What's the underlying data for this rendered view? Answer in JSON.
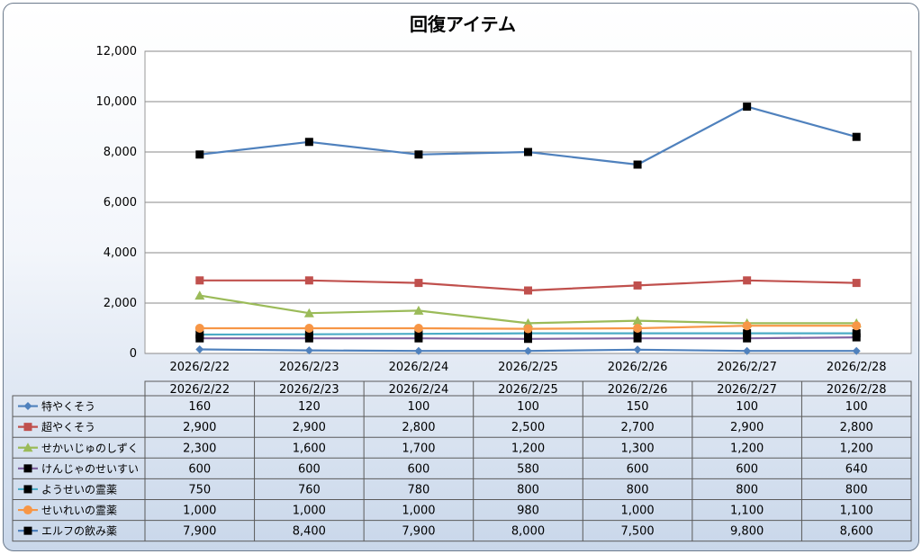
{
  "chart_data": {
    "type": "line",
    "title": "回復アイテム",
    "xlabel": "",
    "ylabel": "",
    "ylim": [
      0,
      12000
    ],
    "yticks": [
      "0",
      "2,000",
      "4,000",
      "6,000",
      "8,000",
      "10,000",
      "12,000"
    ],
    "categories": [
      "2026/2/22",
      "2026/2/23",
      "2026/2/24",
      "2026/2/25",
      "2026/2/26",
      "2026/2/27",
      "2026/2/28"
    ],
    "grid": true,
    "legend": "data-table",
    "series": [
      {
        "name": "特やくそう",
        "color": "#4f81bd",
        "marker": "diamond",
        "values": [
          160,
          120,
          100,
          100,
          150,
          100,
          100
        ],
        "labels": [
          "160",
          "120",
          "100",
          "100",
          "150",
          "100",
          "100"
        ]
      },
      {
        "name": "超やくそう",
        "color": "#c0504d",
        "marker": "square",
        "values": [
          2900,
          2900,
          2800,
          2500,
          2700,
          2900,
          2800
        ],
        "labels": [
          "2,900",
          "2,900",
          "2,800",
          "2,500",
          "2,700",
          "2,900",
          "2,800"
        ]
      },
      {
        "name": "せかいじゅのしずく",
        "color": "#9bbb59",
        "marker": "triangle",
        "values": [
          2300,
          1600,
          1700,
          1200,
          1300,
          1200,
          1200
        ],
        "labels": [
          "2,300",
          "1,600",
          "1,700",
          "1,200",
          "1,300",
          "1,200",
          "1,200"
        ]
      },
      {
        "name": "けんじゃのせいすい",
        "color": "#8064a2",
        "marker": "black-square",
        "values": [
          600,
          600,
          600,
          580,
          600,
          600,
          640
        ],
        "labels": [
          "600",
          "600",
          "600",
          "580",
          "600",
          "600",
          "640"
        ]
      },
      {
        "name": "ようせいの霊薬",
        "color": "#4bacc6",
        "marker": "black-square",
        "values": [
          750,
          760,
          780,
          800,
          800,
          800,
          800
        ],
        "labels": [
          "750",
          "760",
          "780",
          "800",
          "800",
          "800",
          "800"
        ]
      },
      {
        "name": "せいれいの霊薬",
        "color": "#f79646",
        "marker": "circle",
        "values": [
          1000,
          1000,
          1000,
          980,
          1000,
          1100,
          1100
        ],
        "labels": [
          "1,000",
          "1,000",
          "1,000",
          "980",
          "1,000",
          "1,100",
          "1,100"
        ]
      },
      {
        "name": "エルフの飲み薬",
        "color": "#4f81bd",
        "marker": "black-square",
        "values": [
          7900,
          8400,
          7900,
          8000,
          7500,
          9800,
          8600
        ],
        "labels": [
          "7,900",
          "8,400",
          "7,900",
          "8,000",
          "7,500",
          "9,800",
          "8,600"
        ]
      }
    ]
  }
}
